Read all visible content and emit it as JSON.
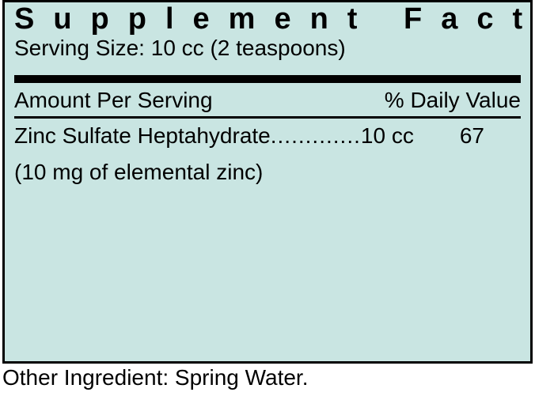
{
  "colors": {
    "panel_bg": "#c9e5e2",
    "text": "#000000",
    "rule": "#000000",
    "page_bg": "#ffffff"
  },
  "title": "Supplement Facts",
  "serving_size_line": "Serving Size: 10 cc (2 teaspoons)",
  "header": {
    "left": "Amount Per Serving",
    "right": "% Daily Value"
  },
  "nutrient": {
    "name": "Zinc Sulfate Heptahydrate",
    "dots": ".............",
    "amount": "10 cc",
    "dv": "67",
    "subnote": "(10 mg of elemental zinc)"
  },
  "footer": "Other Ingredient: Spring Water."
}
